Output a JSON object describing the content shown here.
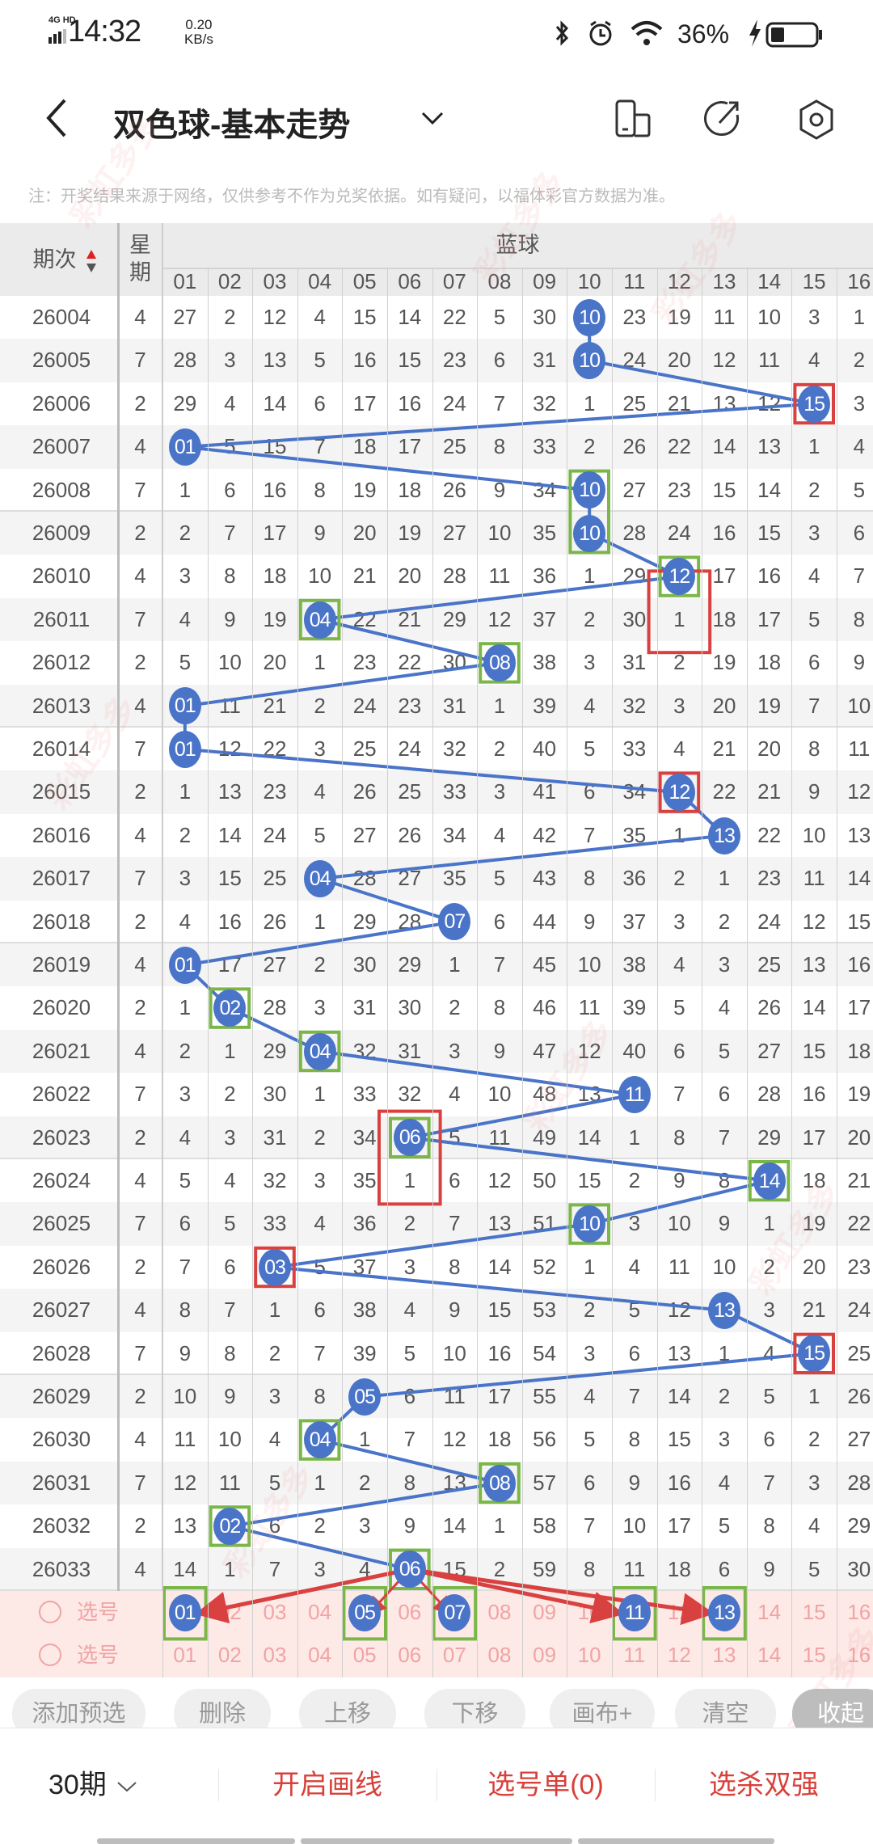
{
  "status_bar": {
    "network": "4G HD",
    "time": "14:32",
    "speed_value": "0.20",
    "speed_unit": "KB/s",
    "battery": "36%",
    "icons": [
      "bluetooth-icon",
      "alarm-icon",
      "wifi-icon",
      "charging-icon",
      "battery-icon"
    ]
  },
  "header": {
    "title": "双色球-基本走势",
    "icons": [
      "back-icon",
      "chevron-down-icon",
      "phone-layout-icon",
      "share-icon",
      "settings-icon"
    ]
  },
  "note": "注：开奖结果来源于网络，仅供参考不作为兑奖依据。如有疑问，以福体彩官方数据为准。",
  "table": {
    "issue_header": "期次",
    "weekday_header": "星期",
    "group_header": "蓝球",
    "columns": [
      "01",
      "02",
      "03",
      "04",
      "05",
      "06",
      "07",
      "08",
      "09",
      "10",
      "11",
      "12",
      "13",
      "14",
      "15",
      "16"
    ],
    "ball_color": "#4a74c8",
    "rows": [
      {
        "issue": "26004",
        "weekday": "4",
        "hit": 10,
        "cells": [
          "27",
          "2",
          "12",
          "4",
          "15",
          "14",
          "22",
          "5",
          "30",
          "10",
          "23",
          "19",
          "11",
          "10",
          "3",
          "1"
        ]
      },
      {
        "issue": "26005",
        "weekday": "7",
        "hit": 10,
        "cells": [
          "28",
          "3",
          "13",
          "5",
          "16",
          "15",
          "23",
          "6",
          "31",
          "10",
          "24",
          "20",
          "12",
          "11",
          "4",
          "2"
        ]
      },
      {
        "issue": "26006",
        "weekday": "2",
        "hit": 15,
        "cells": [
          "29",
          "4",
          "14",
          "6",
          "17",
          "16",
          "24",
          "7",
          "32",
          "1",
          "25",
          "21",
          "13",
          "12",
          "15",
          "3"
        ]
      },
      {
        "issue": "26007",
        "weekday": "4",
        "hit": 1,
        "cells": [
          "01",
          "5",
          "15",
          "7",
          "18",
          "17",
          "25",
          "8",
          "33",
          "2",
          "26",
          "22",
          "14",
          "13",
          "1",
          "4"
        ]
      },
      {
        "issue": "26008",
        "weekday": "7",
        "hit": 10,
        "cells": [
          "1",
          "6",
          "16",
          "8",
          "19",
          "18",
          "26",
          "9",
          "34",
          "10",
          "27",
          "23",
          "15",
          "14",
          "2",
          "5"
        ]
      },
      {
        "issue": "26009",
        "weekday": "2",
        "hit": 10,
        "cells": [
          "2",
          "7",
          "17",
          "9",
          "20",
          "19",
          "27",
          "10",
          "35",
          "10",
          "28",
          "24",
          "16",
          "15",
          "3",
          "6"
        ]
      },
      {
        "issue": "26010",
        "weekday": "4",
        "hit": 12,
        "cells": [
          "3",
          "8",
          "18",
          "10",
          "21",
          "20",
          "28",
          "11",
          "36",
          "1",
          "29",
          "12",
          "17",
          "16",
          "4",
          "7"
        ]
      },
      {
        "issue": "26011",
        "weekday": "7",
        "hit": 4,
        "cells": [
          "4",
          "9",
          "19",
          "04",
          "22",
          "21",
          "29",
          "12",
          "37",
          "2",
          "30",
          "1",
          "18",
          "17",
          "5",
          "8"
        ]
      },
      {
        "issue": "26012",
        "weekday": "2",
        "hit": 8,
        "cells": [
          "5",
          "10",
          "20",
          "1",
          "23",
          "22",
          "30",
          "08",
          "38",
          "3",
          "31",
          "2",
          "19",
          "18",
          "6",
          "9"
        ]
      },
      {
        "issue": "26013",
        "weekday": "4",
        "hit": 1,
        "cells": [
          "01",
          "11",
          "21",
          "2",
          "24",
          "23",
          "31",
          "1",
          "39",
          "4",
          "32",
          "3",
          "20",
          "19",
          "7",
          "10"
        ]
      },
      {
        "issue": "26014",
        "weekday": "7",
        "hit": 1,
        "cells": [
          "01",
          "12",
          "22",
          "3",
          "25",
          "24",
          "32",
          "2",
          "40",
          "5",
          "33",
          "4",
          "21",
          "20",
          "8",
          "11"
        ]
      },
      {
        "issue": "26015",
        "weekday": "2",
        "hit": 12,
        "cells": [
          "1",
          "13",
          "23",
          "4",
          "26",
          "25",
          "33",
          "3",
          "41",
          "6",
          "34",
          "12",
          "22",
          "21",
          "9",
          "12"
        ]
      },
      {
        "issue": "26016",
        "weekday": "4",
        "hit": 13,
        "cells": [
          "2",
          "14",
          "24",
          "5",
          "27",
          "26",
          "34",
          "4",
          "42",
          "7",
          "35",
          "1",
          "13",
          "22",
          "10",
          "13"
        ]
      },
      {
        "issue": "26017",
        "weekday": "7",
        "hit": 4,
        "cells": [
          "3",
          "15",
          "25",
          "04",
          "28",
          "27",
          "35",
          "5",
          "43",
          "8",
          "36",
          "2",
          "1",
          "23",
          "11",
          "14"
        ]
      },
      {
        "issue": "26018",
        "weekday": "2",
        "hit": 7,
        "cells": [
          "4",
          "16",
          "26",
          "1",
          "29",
          "28",
          "07",
          "6",
          "44",
          "9",
          "37",
          "3",
          "2",
          "24",
          "12",
          "15"
        ]
      },
      {
        "issue": "26019",
        "weekday": "4",
        "hit": 1,
        "cells": [
          "01",
          "17",
          "27",
          "2",
          "30",
          "29",
          "1",
          "7",
          "45",
          "10",
          "38",
          "4",
          "3",
          "25",
          "13",
          "16"
        ]
      },
      {
        "issue": "26020",
        "weekday": "2",
        "hit": 2,
        "cells": [
          "1",
          "02",
          "28",
          "3",
          "31",
          "30",
          "2",
          "8",
          "46",
          "11",
          "39",
          "5",
          "4",
          "26",
          "14",
          "17"
        ]
      },
      {
        "issue": "26021",
        "weekday": "4",
        "hit": 4,
        "cells": [
          "2",
          "1",
          "29",
          "04",
          "32",
          "31",
          "3",
          "9",
          "47",
          "12",
          "40",
          "6",
          "5",
          "27",
          "15",
          "18"
        ]
      },
      {
        "issue": "26022",
        "weekday": "7",
        "hit": 11,
        "cells": [
          "3",
          "2",
          "30",
          "1",
          "33",
          "32",
          "4",
          "10",
          "48",
          "13",
          "11",
          "7",
          "6",
          "28",
          "16",
          "19"
        ]
      },
      {
        "issue": "26023",
        "weekday": "2",
        "hit": 6,
        "cells": [
          "4",
          "3",
          "31",
          "2",
          "34",
          "06",
          "5",
          "11",
          "49",
          "14",
          "1",
          "8",
          "7",
          "29",
          "17",
          "20"
        ]
      },
      {
        "issue": "26024",
        "weekday": "4",
        "hit": 14,
        "cells": [
          "5",
          "4",
          "32",
          "3",
          "35",
          "1",
          "6",
          "12",
          "50",
          "15",
          "2",
          "9",
          "8",
          "14",
          "18",
          "21"
        ]
      },
      {
        "issue": "26025",
        "weekday": "7",
        "hit": 10,
        "cells": [
          "6",
          "5",
          "33",
          "4",
          "36",
          "2",
          "7",
          "13",
          "51",
          "10",
          "3",
          "10",
          "9",
          "1",
          "19",
          "22"
        ]
      },
      {
        "issue": "26026",
        "weekday": "2",
        "hit": 3,
        "cells": [
          "7",
          "6",
          "03",
          "5",
          "37",
          "3",
          "8",
          "14",
          "52",
          "1",
          "4",
          "11",
          "10",
          "2",
          "20",
          "23"
        ]
      },
      {
        "issue": "26027",
        "weekday": "4",
        "hit": 13,
        "cells": [
          "8",
          "7",
          "1",
          "6",
          "38",
          "4",
          "9",
          "15",
          "53",
          "2",
          "5",
          "12",
          "13",
          "3",
          "21",
          "24"
        ]
      },
      {
        "issue": "26028",
        "weekday": "7",
        "hit": 15,
        "cells": [
          "9",
          "8",
          "2",
          "7",
          "39",
          "5",
          "10",
          "16",
          "54",
          "3",
          "6",
          "13",
          "1",
          "4",
          "15",
          "25"
        ]
      },
      {
        "issue": "26029",
        "weekday": "2",
        "hit": 5,
        "cells": [
          "10",
          "9",
          "3",
          "8",
          "05",
          "6",
          "11",
          "17",
          "55",
          "4",
          "7",
          "14",
          "2",
          "5",
          "1",
          "26"
        ]
      },
      {
        "issue": "26030",
        "weekday": "4",
        "hit": 4,
        "cells": [
          "11",
          "10",
          "4",
          "04",
          "1",
          "7",
          "12",
          "18",
          "56",
          "5",
          "8",
          "15",
          "3",
          "6",
          "2",
          "27"
        ]
      },
      {
        "issue": "26031",
        "weekday": "7",
        "hit": 8,
        "cells": [
          "12",
          "11",
          "5",
          "1",
          "2",
          "8",
          "13",
          "08",
          "57",
          "6",
          "9",
          "16",
          "4",
          "7",
          "3",
          "28"
        ]
      },
      {
        "issue": "26032",
        "weekday": "2",
        "hit": 2,
        "cells": [
          "13",
          "02",
          "6",
          "2",
          "3",
          "9",
          "14",
          "1",
          "58",
          "7",
          "10",
          "17",
          "5",
          "8",
          "4",
          "29"
        ]
      },
      {
        "issue": "26033",
        "weekday": "4",
        "hit": 6,
        "cells": [
          "14",
          "1",
          "7",
          "3",
          "4",
          "06",
          "15",
          "2",
          "59",
          "8",
          "11",
          "18",
          "6",
          "9",
          "5",
          "30"
        ]
      }
    ],
    "select_rows": [
      {
        "label": "选号",
        "selected": [
          "01",
          "05",
          "07",
          "11",
          "13"
        ]
      },
      {
        "label": "选号",
        "selected": []
      }
    ],
    "marks": [
      {
        "color": "#7ab648",
        "col": 10,
        "rows": [
          "26008",
          "26009"
        ]
      },
      {
        "color": "#7ab648",
        "col": 12,
        "rows": [
          "26010",
          "26010"
        ]
      },
      {
        "color": "#d94040",
        "col": 12,
        "rows": [
          "26010",
          "26011"
        ],
        "wide": true
      },
      {
        "color": "#d94040",
        "col": 15,
        "rows": [
          "26006",
          "26006"
        ]
      },
      {
        "color": "#7ab648",
        "col": 4,
        "rows": [
          "26011",
          "26011"
        ]
      },
      {
        "color": "#7ab648",
        "col": 8,
        "rows": [
          "26012",
          "26012"
        ]
      },
      {
        "color": "#d94040",
        "col": 12,
        "rows": [
          "26015",
          "26015"
        ]
      },
      {
        "color": "#7ab648",
        "col": 2,
        "rows": [
          "26020",
          "26020"
        ]
      },
      {
        "color": "#7ab648",
        "col": 4,
        "rows": [
          "26021",
          "26021"
        ]
      },
      {
        "color": "#7ab648",
        "col": 6,
        "rows": [
          "26023",
          "26023"
        ]
      },
      {
        "color": "#d94040",
        "col": 6,
        "rows": [
          "26023",
          "26024"
        ],
        "wide": true
      },
      {
        "color": "#7ab648",
        "col": 14,
        "rows": [
          "26024",
          "26024"
        ]
      },
      {
        "color": "#7ab648",
        "col": 10,
        "rows": [
          "26025",
          "26025"
        ]
      },
      {
        "color": "#d94040",
        "col": 3,
        "rows": [
          "26026",
          "26026"
        ]
      },
      {
        "color": "#d94040",
        "col": 15,
        "rows": [
          "26028",
          "26028"
        ]
      },
      {
        "color": "#7ab648",
        "col": 4,
        "rows": [
          "26030",
          "26030"
        ]
      },
      {
        "color": "#7ab648",
        "col": 8,
        "rows": [
          "26031",
          "26031"
        ]
      },
      {
        "color": "#7ab648",
        "col": 2,
        "rows": [
          "26032",
          "26032"
        ]
      },
      {
        "color": "#7ab648",
        "col": 6,
        "rows": [
          "26033",
          "26033"
        ]
      }
    ],
    "arrows_from": {
      "issue": "26033",
      "col": 6,
      "to": [
        1,
        5,
        7,
        11,
        13
      ],
      "color": "#d94040"
    }
  },
  "toolbar": {
    "buttons": [
      "添加预选",
      "删除",
      "上移",
      "下移",
      "画布+",
      "清空",
      "收起"
    ]
  },
  "bottom_bar": {
    "period": "30期",
    "draw_line": "开启画线",
    "pick_list": "选号单(0)",
    "kill": "选杀双强",
    "accent": "#d9403a"
  },
  "watermark": "彩虹多多"
}
